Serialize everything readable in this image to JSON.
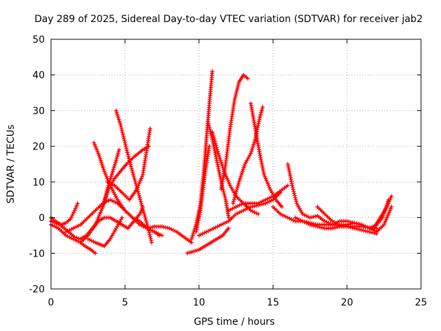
{
  "chart_data": {
    "type": "scatter",
    "title": "Day 289 of 2025, Sidereal Day-to-day VTEC variation (SDTVAR) for receiver jab2",
    "xlabel": "GPS time / hours",
    "ylabel": "SDTVAR / TECUs",
    "xlim": [
      0,
      25
    ],
    "ylim": [
      -20,
      50
    ],
    "xticks": [
      0,
      5,
      10,
      15,
      20,
      25
    ],
    "yticks": [
      -20,
      -10,
      0,
      10,
      20,
      30,
      40,
      50
    ],
    "grid": true,
    "marker": "+",
    "color": "#ff0000",
    "series": [
      {
        "name": "s1",
        "x": [
          0.0,
          0.3,
          0.7,
          1.0,
          1.3,
          1.6,
          1.8
        ],
        "y": [
          0,
          -1,
          -2,
          -1.5,
          -0.5,
          2,
          4
        ]
      },
      {
        "name": "s2",
        "x": [
          0.0,
          0.5,
          1.0,
          1.5,
          2.0,
          2.3,
          2.7,
          3.0
        ],
        "y": [
          -2,
          -3,
          -5,
          -6,
          -7,
          -8,
          -9,
          -10
        ]
      },
      {
        "name": "s3",
        "x": [
          0.0,
          0.6,
          1.2,
          1.6,
          2.0,
          2.4,
          2.8,
          3.2,
          3.6,
          4.0,
          4.4,
          4.8,
          5.2,
          5.6,
          6.0,
          6.2
        ],
        "y": [
          -1,
          -2,
          -4,
          -5.5,
          -6,
          -5,
          -3,
          -1,
          0,
          0,
          -1,
          -2,
          -3,
          -1,
          1,
          3
        ]
      },
      {
        "name": "s4",
        "x": [
          1.0,
          1.5,
          2.0,
          2.5,
          3.0,
          3.5,
          4.0,
          4.5,
          5.0,
          5.5,
          6.0,
          6.5,
          7.0,
          7.5
        ],
        "y": [
          -4,
          -3,
          -2,
          0,
          2,
          4,
          5,
          4,
          2,
          0,
          -1,
          -3,
          -4,
          -5
        ]
      },
      {
        "name": "s5",
        "x": [
          2.0,
          2.5,
          3.0,
          3.5,
          3.8,
          4.1,
          4.4,
          4.6
        ],
        "y": [
          -7,
          -5,
          -2,
          3,
          8,
          12,
          16,
          19
        ]
      },
      {
        "name": "s6",
        "x": [
          2.9,
          3.2,
          3.6,
          4.0,
          4.5,
          5.0,
          5.5,
          6.0,
          6.5,
          7.0,
          7.3
        ],
        "y": [
          21,
          18,
          13,
          9,
          5,
          2,
          0,
          -2,
          -3,
          -4,
          -5
        ]
      },
      {
        "name": "s7",
        "x": [
          2.5,
          3.0,
          3.3,
          3.6,
          4.0,
          4.4,
          4.8
        ],
        "y": [
          -6,
          -7,
          -7.5,
          -8,
          -6,
          -3,
          0
        ]
      },
      {
        "name": "s8",
        "x": [
          3.5,
          3.9,
          4.3,
          4.7,
          5.1,
          5.6,
          6.2,
          6.6
        ],
        "y": [
          3,
          8,
          11,
          13,
          15,
          17,
          19,
          20
        ]
      },
      {
        "name": "s9",
        "x": [
          4.4,
          4.7,
          5.0,
          5.3,
          5.7,
          6.1,
          6.5,
          6.8
        ],
        "y": [
          30,
          26,
          21,
          16,
          10,
          4,
          -2,
          -7
        ]
      },
      {
        "name": "s10",
        "x": [
          3.8,
          4.3,
          4.8,
          5.3,
          5.8,
          6.2,
          6.7
        ],
        "y": [
          10,
          9,
          7,
          5,
          8,
          12,
          25
        ]
      },
      {
        "name": "s11",
        "x": [
          6.5,
          7.0,
          7.5,
          8.0,
          8.5,
          9.0,
          9.5
        ],
        "y": [
          -3,
          -2.5,
          -2.5,
          -3,
          -4,
          -5.5,
          -7
        ]
      },
      {
        "name": "s12",
        "x": [
          9.2,
          9.6,
          10.0,
          10.4,
          10.8,
          11.2,
          11.6,
          12.0
        ],
        "y": [
          -10,
          -9.5,
          -9,
          -8,
          -7,
          -6,
          -5,
          -3
        ]
      },
      {
        "name": "s13",
        "x": [
          9.5,
          9.8,
          10.1,
          10.3,
          10.5,
          10.7,
          10.9
        ],
        "y": [
          -6,
          -2,
          4,
          12,
          22,
          32,
          41
        ]
      },
      {
        "name": "s14",
        "x": [
          9.8,
          10.1,
          10.3,
          10.5,
          10.7
        ],
        "y": [
          -4,
          2,
          9,
          15,
          20
        ]
      },
      {
        "name": "s15",
        "x": [
          10.6,
          10.9,
          11.2,
          11.5,
          11.8,
          12.0
        ],
        "y": [
          27,
          22,
          16,
          10,
          5,
          0
        ]
      },
      {
        "name": "s16",
        "x": [
          10.0,
          10.5,
          11.0,
          11.5,
          12.0,
          12.5,
          13.0,
          13.5,
          14.0,
          14.5,
          15.0,
          15.5
        ],
        "y": [
          -5,
          -4,
          -3,
          -2,
          -1,
          1,
          2,
          3,
          3.5,
          4,
          5,
          7
        ]
      },
      {
        "name": "s17",
        "x": [
          11.5,
          11.8,
          12.1,
          12.4,
          12.7,
          13.0,
          13.3
        ],
        "y": [
          8,
          15,
          25,
          33,
          38,
          40,
          39
        ]
      },
      {
        "name": "s18",
        "x": [
          10.9,
          11.3,
          11.7,
          12.1,
          12.5,
          13.0,
          13.5,
          14.0
        ],
        "y": [
          24,
          18,
          13,
          9,
          6,
          4,
          2,
          1
        ]
      },
      {
        "name": "s19",
        "x": [
          12.3,
          12.7,
          13.1,
          13.5,
          13.8,
          14.1,
          14.3
        ],
        "y": [
          4,
          10,
          15,
          18,
          22,
          28,
          31
        ]
      },
      {
        "name": "s20",
        "x": [
          13.5,
          13.8,
          14.1,
          14.4,
          14.8,
          15.2,
          15.6
        ],
        "y": [
          32,
          25,
          18,
          12,
          8,
          5,
          3
        ]
      },
      {
        "name": "s21",
        "x": [
          12.0,
          13.0,
          14.0,
          15.0,
          16.0
        ],
        "y": [
          2,
          4,
          4,
          6,
          9
        ]
      },
      {
        "name": "s22",
        "x": [
          15.0,
          15.5,
          16.0,
          16.5,
          17.0,
          17.5,
          18.0,
          19.0,
          20.0,
          21.0,
          22.0
        ],
        "y": [
          3,
          1,
          0,
          -1,
          -1,
          -1.5,
          -2,
          -2,
          -2.5,
          -2.5,
          -3
        ]
      },
      {
        "name": "s23",
        "x": [
          16.0,
          16.3,
          16.6,
          17.0,
          17.5,
          18.0,
          18.5,
          19.0
        ],
        "y": [
          15,
          9,
          4,
          1,
          0,
          0.5,
          -1,
          -2
        ]
      },
      {
        "name": "s24",
        "x": [
          16.5,
          17.0,
          17.5,
          18.0,
          18.5,
          19.0,
          19.5,
          20.0,
          20.5,
          21.0,
          21.5,
          22.0
        ],
        "y": [
          0,
          -1,
          -2,
          -2.5,
          -3,
          -3,
          -2.5,
          -2.5,
          -3,
          -3.5,
          -4,
          -4.5
        ]
      },
      {
        "name": "s25",
        "x": [
          18.0,
          18.5,
          19.0,
          19.5,
          20.0,
          20.5,
          21.0,
          21.5,
          22.0,
          22.5,
          23.0
        ],
        "y": [
          3,
          1,
          -1,
          -2,
          -2,
          -1.5,
          -2,
          -3,
          -4,
          -2,
          3
        ]
      },
      {
        "name": "s26",
        "x": [
          19.0,
          19.5,
          20.0,
          20.5,
          21.0,
          21.5,
          22.0,
          22.4,
          22.8
        ],
        "y": [
          -2,
          -1,
          -1,
          -1.5,
          -2,
          -3,
          -2,
          0,
          5
        ]
      },
      {
        "name": "s27",
        "x": [
          21.5,
          21.8,
          22.1,
          22.4,
          22.7,
          23.0
        ],
        "y": [
          -3,
          -3,
          -1,
          1,
          3,
          6
        ]
      }
    ]
  }
}
